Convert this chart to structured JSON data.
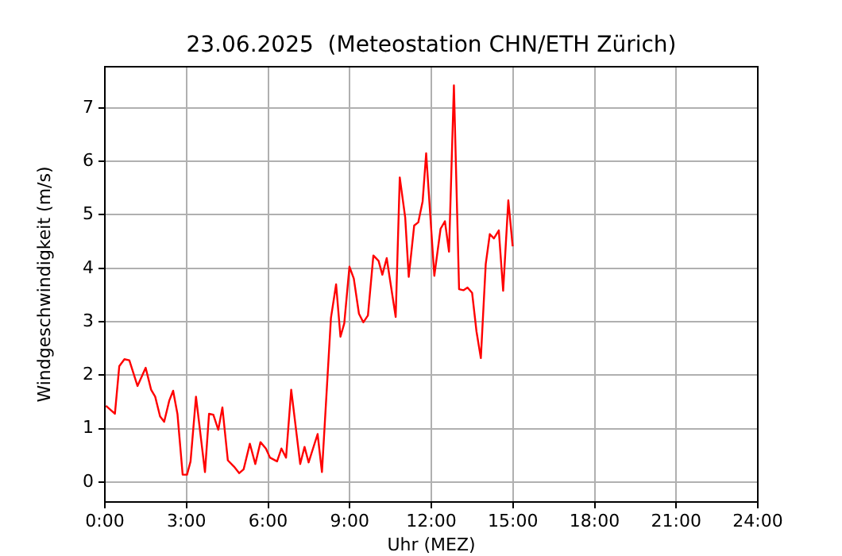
{
  "chart_data": {
    "type": "line",
    "title": "23.06.2025  (Meteostation CHN/ETH Zürich)",
    "xlabel": "Uhr (MEZ)",
    "ylabel": "Windgeschwindigkeit (m/s)",
    "x": [
      0.04,
      0.37,
      0.53,
      0.72,
      0.9,
      1.2,
      1.5,
      1.7,
      1.85,
      2.03,
      2.18,
      2.37,
      2.51,
      2.67,
      2.86,
      3.02,
      3.15,
      3.35,
      3.68,
      3.83,
      3.99,
      4.17,
      4.32,
      4.52,
      4.75,
      4.94,
      5.1,
      5.33,
      5.53,
      5.72,
      5.92,
      6.07,
      6.33,
      6.49,
      6.66,
      6.85,
      7.18,
      7.34,
      7.49,
      7.82,
      7.98,
      8.31,
      8.5,
      8.66,
      8.8,
      8.99,
      9.15,
      9.34,
      9.5,
      9.67,
      9.87,
      10.06,
      10.2,
      10.36,
      10.69,
      10.84,
      11.04,
      11.17,
      11.37,
      11.52,
      11.68,
      11.81,
      12.11,
      12.34,
      12.5,
      12.65,
      12.83,
      13.02,
      13.18,
      13.33,
      13.5,
      13.66,
      13.82,
      14.0,
      14.15,
      14.3,
      14.48,
      14.64,
      14.83,
      14.99
    ],
    "series": [
      {
        "color": "#ff0000",
        "values": [
          1.43,
          1.28,
          2.17,
          2.3,
          2.28,
          1.8,
          2.14,
          1.73,
          1.6,
          1.23,
          1.13,
          1.53,
          1.71,
          1.27,
          0.14,
          0.14,
          0.39,
          1.6,
          0.19,
          1.28,
          1.26,
          0.98,
          1.4,
          0.41,
          0.29,
          0.17,
          0.24,
          0.72,
          0.34,
          0.75,
          0.63,
          0.46,
          0.39,
          0.63,
          0.46,
          1.73,
          0.34,
          0.66,
          0.37,
          0.9,
          0.19,
          3.07,
          3.7,
          2.72,
          2.97,
          4.03,
          3.81,
          3.15,
          2.99,
          3.12,
          4.24,
          4.14,
          3.88,
          4.19,
          3.09,
          5.7,
          4.95,
          3.84,
          4.8,
          4.86,
          5.25,
          6.15,
          3.86,
          4.74,
          4.88,
          4.31,
          7.42,
          3.61,
          3.59,
          3.64,
          3.54,
          2.82,
          2.32,
          4.08,
          4.64,
          4.56,
          4.71,
          3.58,
          5.27,
          4.41
        ]
      }
    ],
    "xlim": [
      0,
      24
    ],
    "xticks": [
      {
        "value": 0,
        "label": "0:00"
      },
      {
        "value": 3,
        "label": "3:00"
      },
      {
        "value": 6,
        "label": "6:00"
      },
      {
        "value": 9,
        "label": "9:00"
      },
      {
        "value": 12,
        "label": "12:00"
      },
      {
        "value": 15,
        "label": "15:00"
      },
      {
        "value": 18,
        "label": "18:00"
      },
      {
        "value": 21,
        "label": "21:00"
      },
      {
        "value": 24,
        "label": "24:00"
      }
    ],
    "ylim": [
      -0.37,
      7.77
    ],
    "yticks": [
      0,
      1,
      2,
      3,
      4,
      5,
      6,
      7
    ],
    "grid": true,
    "legend": false,
    "marker": "none",
    "line_style": "solid"
  }
}
